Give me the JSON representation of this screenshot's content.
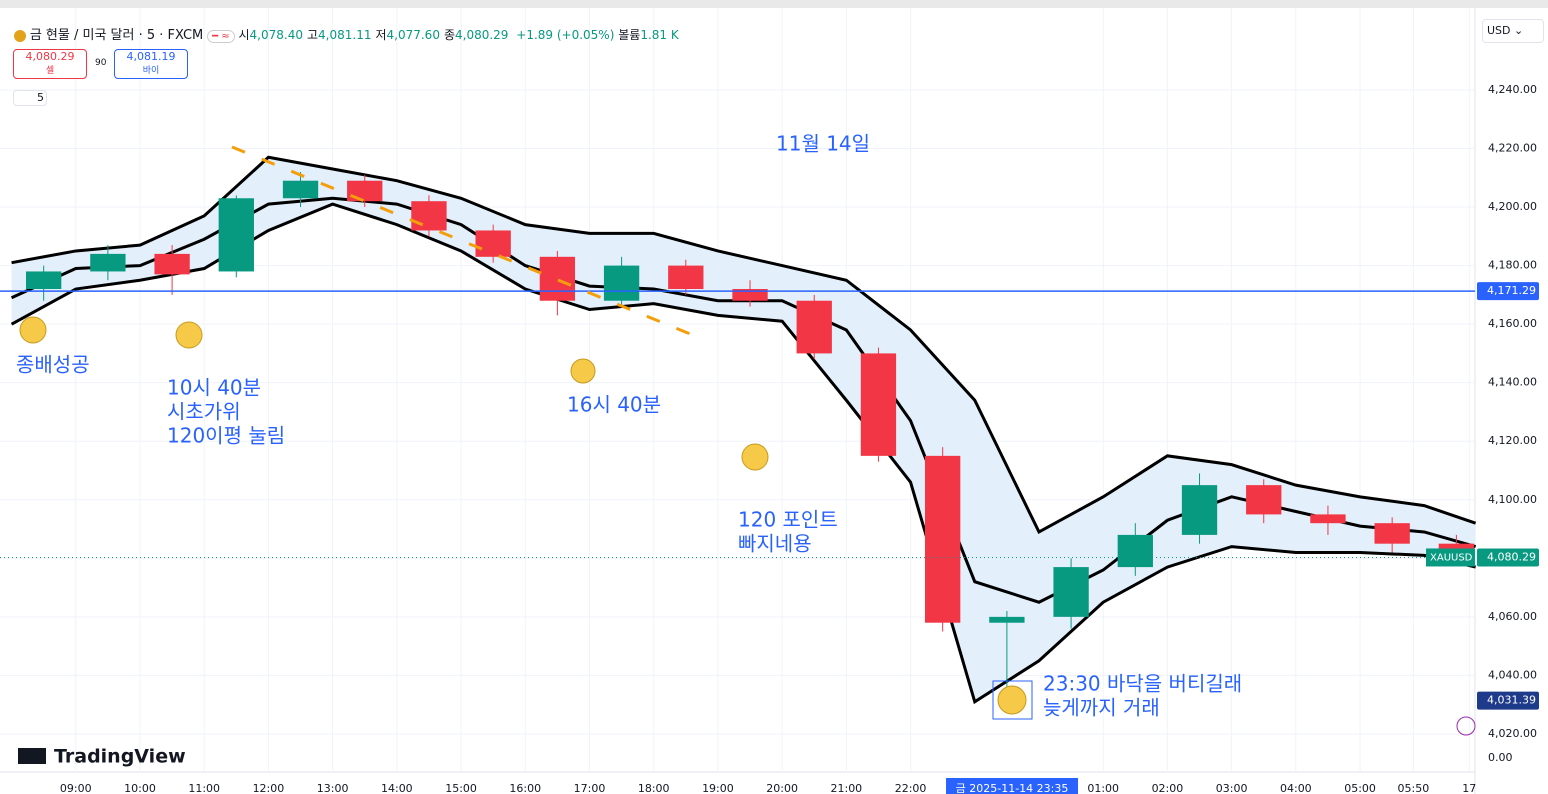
{
  "header": {
    "symbol": "금 현물 / 미국 달러 · 5 · FXCM",
    "ohlc": [
      [
        "시",
        "4,078.40"
      ],
      [
        "고",
        "4,081.11"
      ],
      [
        "저",
        "4,077.60"
      ],
      [
        "종",
        "4,080.29"
      ]
    ],
    "change": "+1.89 (+0.05%)",
    "volume_label": "볼륨",
    "volume": "1.81 K",
    "sell_price": "4,080.29",
    "sell": "셀",
    "spread": "90",
    "buy_price": "4,081.19",
    "buy": "바이",
    "interval": "5",
    "currency": "USD",
    "logo": "TradingView"
  },
  "chart_data": {
    "type": "candlestick",
    "x": [
      8.5,
      9.5,
      10.5,
      11.5,
      12.5,
      13.5,
      14.5,
      15.5,
      16.5,
      17.5,
      18.5,
      19.5,
      20.5,
      21.5,
      22.5,
      23.5,
      24.5,
      25.5,
      26.5,
      27.5,
      28.5,
      29.5,
      30.5
    ],
    "open": [
      4172,
      4178,
      4184,
      4178,
      4203,
      4209,
      4202,
      4192,
      4183,
      4168,
      4180,
      4172,
      4168,
      4150,
      4115,
      4058,
      4060,
      4077,
      4088,
      4105,
      4095,
      4092,
      4085
    ],
    "high": [
      4180,
      4187,
      4187,
      4204,
      4212,
      4211,
      4204,
      4194,
      4185,
      4183,
      4182,
      4175,
      4170,
      4152,
      4118,
      4062,
      4080,
      4092,
      4109,
      4107,
      4098,
      4094,
      4088
    ],
    "low": [
      4168,
      4175,
      4170,
      4176,
      4200,
      4200,
      4190,
      4181,
      4163,
      4166,
      4170,
      4166,
      4148,
      4113,
      4055,
      4032,
      4056,
      4074,
      4085,
      4092,
      4088,
      4082,
      4078
    ],
    "close": [
      4178,
      4184,
      4177,
      4203,
      4209,
      4202,
      4192,
      4183,
      4168,
      4180,
      4172,
      4168,
      4150,
      4115,
      4058,
      4060,
      4077,
      4088,
      4105,
      4095,
      4092,
      4085,
      4080
    ],
    "bands": {
      "x": [
        8,
        9,
        10,
        11,
        12,
        13,
        14,
        15,
        16,
        17,
        18,
        19,
        20,
        21,
        22,
        23,
        24,
        25,
        26,
        27,
        28,
        29,
        30,
        30.8
      ],
      "upper": [
        4181,
        4185,
        4187,
        4197,
        4217,
        4213,
        4209,
        4203,
        4194,
        4191,
        4191,
        4185,
        4180,
        4175,
        4158,
        4134,
        4089,
        4101,
        4115,
        4112,
        4105,
        4101,
        4098,
        4092
      ],
      "middle": [
        4169,
        4179,
        4180,
        4189,
        4201,
        4203,
        4201,
        4194,
        4180,
        4173,
        4172,
        4168,
        4168,
        4158,
        4127,
        4072,
        4065,
        4076,
        4093,
        4101,
        4096,
        4091,
        4089,
        4084
      ],
      "lower": [
        4160,
        4172,
        4175,
        4179,
        4192,
        4201,
        4194,
        4185,
        4172,
        4165,
        4167,
        4163,
        4161,
        4134,
        4106,
        4031,
        4045,
        4065,
        4077,
        4084,
        4082,
        4082,
        4081,
        4077
      ]
    },
    "colors": {
      "up": "#089981",
      "down": "#f23645",
      "band": "#000000",
      "band_fill": "#e3effa"
    },
    "xlim": [
      7.82,
      30.79
    ],
    "ylim": [
      4007,
      4268
    ],
    "xticks": [
      {
        "value": 9,
        "label": "09:00"
      },
      {
        "value": 10,
        "label": "10:00"
      },
      {
        "value": 11,
        "label": "11:00"
      },
      {
        "value": 12,
        "label": "12:00"
      },
      {
        "value": 13,
        "label": "13:00"
      },
      {
        "value": 14,
        "label": "14:00"
      },
      {
        "value": 15,
        "label": "15:00"
      },
      {
        "value": 16,
        "label": "16:00"
      },
      {
        "value": 17,
        "label": "17:00"
      },
      {
        "value": 18,
        "label": "18:00"
      },
      {
        "value": 19,
        "label": "19:00"
      },
      {
        "value": 20,
        "label": "20:00"
      },
      {
        "value": 21,
        "label": "21:00"
      },
      {
        "value": 22,
        "label": "22:00"
      },
      {
        "value": 25,
        "label": "01:00"
      },
      {
        "value": 26,
        "label": "02:00"
      },
      {
        "value": 27,
        "label": "03:00"
      },
      {
        "value": 28,
        "label": "04:00"
      },
      {
        "value": 29,
        "label": "05:00"
      },
      {
        "value": 29.83,
        "label": "05:50"
      },
      {
        "value": 30.7,
        "label": "17"
      }
    ],
    "cursor_x": {
      "value": 23.58,
      "label": "금 2025-11-14  23:35"
    },
    "yticks": [
      {
        "value": 4020,
        "label": "4,020.00"
      },
      {
        "value": 4040,
        "label": "4,040.00"
      },
      {
        "value": 4060,
        "label": "4,060.00"
      },
      {
        "value": 4080,
        "label": "4,080.00"
      },
      {
        "value": 4100,
        "label": "4,100.00"
      },
      {
        "value": 4120,
        "label": "4,120.00"
      },
      {
        "value": 4140,
        "label": "4,140.00"
      },
      {
        "value": 4160,
        "label": "4,160.00"
      },
      {
        "value": 4180,
        "label": "4,180.00"
      },
      {
        "value": 4200,
        "label": "4,200.00"
      },
      {
        "value": 4220,
        "label": "4,220.00"
      },
      {
        "value": 4240,
        "label": "4,240.00"
      }
    ],
    "pane_label": "0.00",
    "hlines": [
      {
        "value": 4171.29,
        "label": "4,171.29",
        "color": "#2962ff"
      },
      {
        "value": 4080.29,
        "label": "4,080.29",
        "color": "#089981",
        "tag": "XAUUSD"
      }
    ],
    "low_marker": {
      "value": 4031.39,
      "label": "4,031.39",
      "color": "#1e3a8a"
    },
    "grid": true,
    "annotations": [
      [
        "11월 14일"
      ],
      [
        "종배성공"
      ],
      [
        "10시 40분",
        "시초가위",
        "120이평 눌림"
      ],
      [
        "16시 40분"
      ],
      [
        "120 포인트",
        "빠지네용"
      ],
      [
        "23:30 바닥을 버티길래",
        "늦게까지 거래"
      ]
    ]
  }
}
